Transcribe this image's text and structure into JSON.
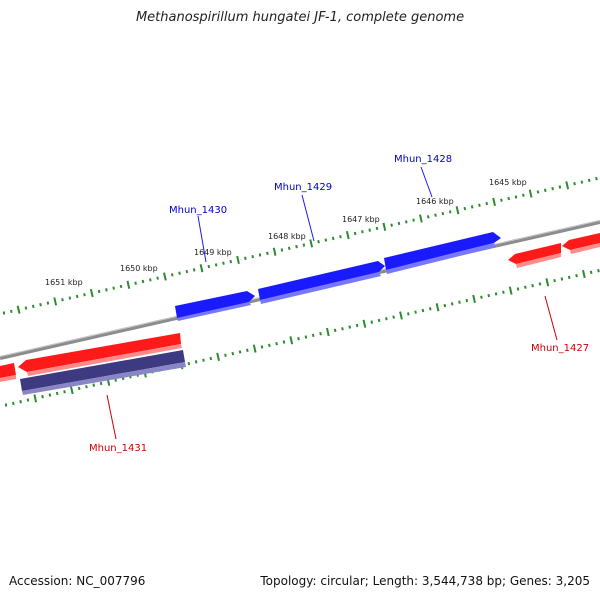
{
  "title": "Methanospirillum hungatei JF-1, complete genome",
  "footer": {
    "accession": "Accession: NC_007796",
    "summary": "Topology: circular; Length: 3,544,738 bp; Genes: 3,205"
  },
  "colors": {
    "backbone": "#8a8a8a",
    "tick": "#2e8b2e",
    "forward_gene": "#1a1aff",
    "reverse_gene": "#ff1a1a",
    "selected_gene": "#3d3a82",
    "forward_label": "#0000cc",
    "reverse_label": "#cc0000"
  },
  "ticks": {
    "outer_labels": [
      "1651 kbp",
      "1650 kbp",
      "1649 kbp",
      "1648 kbp",
      "1647 kbp",
      "1646 kbp",
      "1645 kbp"
    ]
  },
  "genes": {
    "labels": [
      "Mhun_1430",
      "Mhun_1429",
      "Mhun_1428",
      "Mhun_1427",
      "Mhun_1431"
    ]
  }
}
